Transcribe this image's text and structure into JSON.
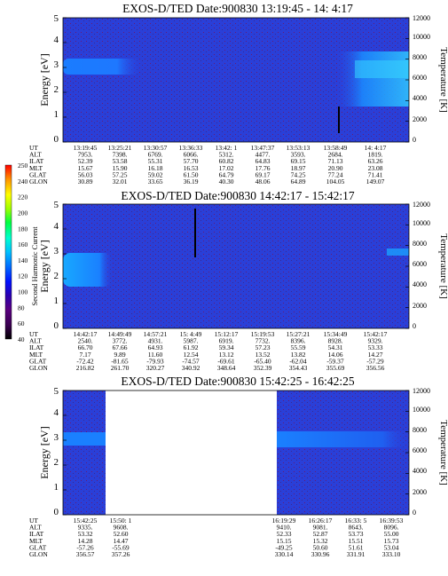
{
  "panels": [
    {
      "title": "EXOS-D/TED   Date:900830  13:19:45 - 14: 4:17",
      "ylabel_left": "Energy [eV]",
      "ylabel_right": "Temperature [K]",
      "energy_ticks": [
        "0",
        "1",
        "2",
        "3",
        "4",
        "5"
      ],
      "temp_ticks": [
        "0",
        "2000",
        "4000",
        "6000",
        "8000",
        "10000",
        "12000"
      ],
      "row_labels": [
        "UT",
        "ALT",
        "ILAT",
        "MLT",
        "GLAT",
        "GLON"
      ],
      "columns": [
        [
          "13:19:45",
          "7953.",
          "52.39",
          "15.67",
          "56.03",
          "30.89"
        ],
        [
          "13:25:21",
          "7398.",
          "53.58",
          "15.90",
          "57.25",
          "32.01"
        ],
        [
          "13:30:57",
          "6769.",
          "55.31",
          "16.18",
          "59.02",
          "33.65"
        ],
        [
          "13:36:33",
          "6066.",
          "57.70",
          "16.53",
          "61.50",
          "36.19"
        ],
        [
          "13:42: 1",
          "5312.",
          "60.82",
          "17.02",
          "64.79",
          "40.30"
        ],
        [
          "13:47:37",
          "4477.",
          "64.83",
          "17.76",
          "69.17",
          "48.06"
        ],
        [
          "13:53:13",
          "3593.",
          "69.15",
          "18.97",
          "74.25",
          "64.89"
        ],
        [
          "13:58:49",
          "2684.",
          "71.13",
          "20.90",
          "77.24",
          "104.05"
        ],
        [
          "14: 4:17",
          "1819.",
          "63.26",
          "23.08",
          "71.41",
          "149.07"
        ]
      ]
    },
    {
      "title": "EXOS-D/TED   Date:900830  14:42:17 - 15:42:17",
      "ylabel_left": "Energy [eV]",
      "ylabel_right": "Temperature [K]",
      "energy_ticks": [
        "0",
        "1",
        "2",
        "3",
        "4",
        "5"
      ],
      "temp_ticks": [
        "0",
        "2000",
        "4000",
        "6000",
        "8000",
        "10000",
        "12000"
      ],
      "row_labels": [
        "UT",
        "ALT",
        "ILAT",
        "MLT",
        "GLAT",
        "GLON"
      ],
      "columns": [
        [
          "14:42:17",
          "2540.",
          "66.70",
          "7.17",
          "-72.42",
          "216.82"
        ],
        [
          "14:49:49",
          "3772.",
          "67.66",
          "9.89",
          "-81.65",
          "261.70"
        ],
        [
          "14:57:21",
          "4931.",
          "64.93",
          "11.60",
          "-79.93",
          "320.27"
        ],
        [
          "15: 4:49",
          "5987.",
          "61.92",
          "12.54",
          "-74.57",
          "340.92"
        ],
        [
          "15:12:17",
          "6919.",
          "59.34",
          "13.12",
          "-69.61",
          "348.64"
        ],
        [
          "15:19:53",
          "7732.",
          "57.23",
          "13.52",
          "-65.40",
          "352.39"
        ],
        [
          "15:27:21",
          "8396.",
          "55.59",
          "13.82",
          "-62.04",
          "354.43"
        ],
        [
          "15:34:49",
          "8928.",
          "54.31",
          "14.06",
          "-59.37",
          "355.69"
        ],
        [
          "15:42:17",
          "9329.",
          "53.33",
          "14.27",
          "-57.29",
          "356.56"
        ]
      ]
    },
    {
      "title": "EXOS-D/TED   Date:900830  15:42:25 - 16:42:25",
      "ylabel_left": "Energy [eV]",
      "ylabel_right": "Temperature [K]",
      "energy_ticks": [
        "0",
        "1",
        "2",
        "3",
        "4",
        "5"
      ],
      "temp_ticks": [
        "0",
        "2000",
        "4000",
        "6000",
        "8000",
        "10000",
        "12000"
      ],
      "row_labels": [
        "UT",
        "ALT",
        "ILAT",
        "MLT",
        "GLAT",
        "GLON"
      ],
      "columns": [
        [
          "15:42:25",
          "9335.",
          "53.32",
          "14.28",
          "-57.26",
          "356.57"
        ],
        [
          "15:50: 1",
          "9608.",
          "52.60",
          "14.47",
          "-55.69",
          "357.26"
        ],
        [
          "16:19:29",
          "9410.",
          "52.33",
          "15.15",
          "-49.25",
          "330.14"
        ],
        [
          "16:26:17",
          "9081.",
          "52.87",
          "15.32",
          "50.60",
          "330.96"
        ],
        [
          "16:33: 5",
          "8643.",
          "53.73",
          "15.51",
          "51.61",
          "331.91"
        ],
        [
          "16:39:53",
          "8096.",
          "55.00",
          "15.73",
          "53.04",
          "333.10"
        ]
      ]
    }
  ],
  "colorbar": {
    "label": "Second Harmonic Current",
    "ticks": [
      "40",
      "60",
      "80",
      "100",
      "120",
      "140",
      "160",
      "180",
      "200",
      "220",
      "240",
      "250"
    ],
    "colors": [
      "#000000",
      "#3a0050",
      "#5a0080",
      "#2a00b0",
      "#0010ff",
      "#0070ff",
      "#00c0ff",
      "#00ffd0",
      "#00ff40",
      "#a0ff00",
      "#ffff00",
      "#ff9000",
      "#ff0000"
    ]
  },
  "chart_data": [
    {
      "type": "heatmap",
      "title": "EXOS-D/TED   Date:900830  13:19:45 - 14: 4:17",
      "xlabel": "UT",
      "ylabel": "Energy [eV]",
      "y2label": "Temperature [K]",
      "x": [
        "13:19:45",
        "13:25:21",
        "13:30:57",
        "13:36:33",
        "13:42: 1",
        "13:47:37",
        "13:53:13",
        "13:58:49",
        "14: 4:17"
      ],
      "ylim": [
        0,
        5
      ],
      "y2lim": [
        0,
        12000
      ],
      "features": [
        {
          "band": "cyan",
          "x_range": [
            "13:19:45",
            "13:30:57"
          ],
          "energy": [
            2.6,
            3.2
          ],
          "level": 140
        },
        {
          "band": "cyan",
          "x_range": [
            "13:53:13",
            "14: 4:17"
          ],
          "energy": [
            1.8,
            3.6
          ],
          "level": 150
        },
        {
          "background": "blue",
          "level": 100
        }
      ]
    },
    {
      "type": "heatmap",
      "title": "EXOS-D/TED   Date:900830  14:42:17 - 15:42:17",
      "xlabel": "UT",
      "ylabel": "Energy [eV]",
      "y2label": "Temperature [K]",
      "x": [
        "14:42:17",
        "14:49:49",
        "14:57:21",
        "15: 4:49",
        "15:12:17",
        "15:19:53",
        "15:27:21",
        "15:34:49",
        "15:42:17"
      ],
      "ylim": [
        0,
        5
      ],
      "y2lim": [
        0,
        12000
      ],
      "features": [
        {
          "band": "cyan",
          "x_range": [
            "14:42:17",
            "14:49:49"
          ],
          "energy": [
            1.7,
            3.0
          ],
          "level": 140
        },
        {
          "band": "cyan",
          "x_range": [
            "15:34:49",
            "15:42:17"
          ],
          "energy": [
            2.8,
            3.1
          ],
          "level": 130
        },
        {
          "background": "blue",
          "level": 100
        }
      ]
    },
    {
      "type": "heatmap",
      "title": "EXOS-D/TED   Date:900830  15:42:25 - 16:42:25",
      "xlabel": "UT",
      "ylabel": "Energy [eV]",
      "y2label": "Temperature [K]",
      "x": [
        "15:42:25",
        "15:50: 1",
        "16:19:29",
        "16:26:17",
        "16:33: 5",
        "16:39:53"
      ],
      "ylim": [
        0,
        5
      ],
      "y2lim": [
        0,
        12000
      ],
      "gap": [
        "15:52:00",
        "16:17:00"
      ],
      "features": [
        {
          "band": "cyan",
          "x_range": [
            "15:42:25",
            "15:50: 1"
          ],
          "energy": [
            2.8,
            3.2
          ],
          "level": 130
        },
        {
          "band": "cyan",
          "x_range": [
            "16:19:29",
            "16:39:53"
          ],
          "energy": [
            2.7,
            3.2
          ],
          "level": 130
        },
        {
          "background": "blue",
          "level": 100
        }
      ]
    }
  ]
}
